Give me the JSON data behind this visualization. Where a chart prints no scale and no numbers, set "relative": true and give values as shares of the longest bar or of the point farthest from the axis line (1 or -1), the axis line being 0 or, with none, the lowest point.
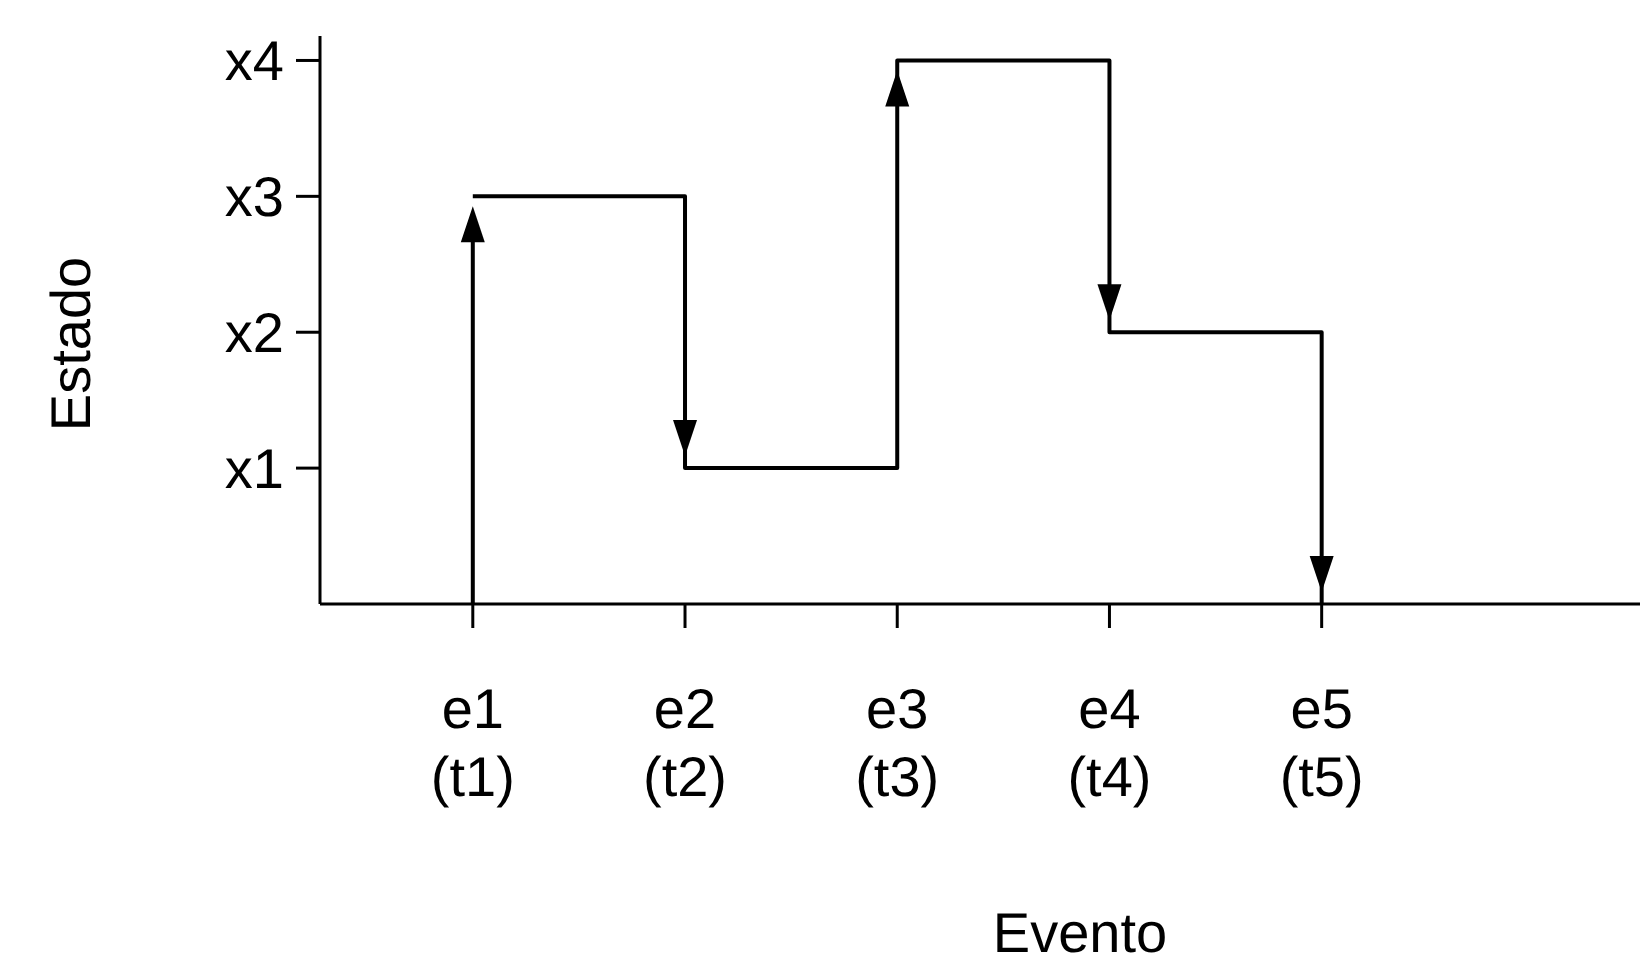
{
  "chart_data": {
    "type": "step",
    "xlabel": "Evento",
    "ylabel": "Estado",
    "relative": true,
    "categories": [
      "e1\n(t1)",
      "e2\n(t2)",
      "e3\n(t3)",
      "e4\n(t4)",
      "e5\n(t5)"
    ],
    "values": [
      0.75,
      0.25,
      1,
      0.5,
      0
    ],
    "color": "#000000",
    "annotations": [
      "x1",
      "x2",
      "x3",
      "x4"
    ],
    "marker": "none",
    "line_style": "solid"
  }
}
